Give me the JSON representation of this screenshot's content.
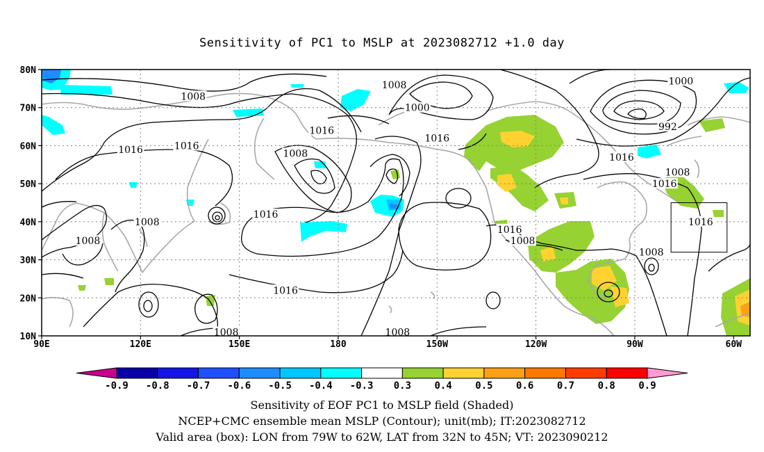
{
  "title": "Sensitivity of PC1 to MSLP at 2023082712 +1.0 day",
  "map": {
    "lon_labels": [
      "90E",
      "120E",
      "150E",
      "180",
      "150W",
      "120W",
      "90W",
      "60W"
    ],
    "lat_labels": [
      "80N",
      "70N",
      "60N",
      "50N",
      "40N",
      "30N",
      "20N",
      "10N"
    ],
    "lon_range": [
      90,
      305
    ],
    "lat_range": [
      10,
      80
    ],
    "grid": "dotted",
    "contour_labels": [
      {
        "text": "1008",
        "lon": 136,
        "lat": 73
      },
      {
        "text": "1008",
        "lon": 122,
        "lat": 40
      },
      {
        "text": "1008",
        "lon": 104,
        "lat": 35
      },
      {
        "text": "1008",
        "lon": 167,
        "lat": 58
      },
      {
        "text": "1008",
        "lon": 197,
        "lat": 76
      },
      {
        "text": "1008",
        "lon": 283,
        "lat": 53
      },
      {
        "text": "1008",
        "lon": 236,
        "lat": 35
      },
      {
        "text": "1008",
        "lon": 275,
        "lat": 32
      },
      {
        "text": "1008",
        "lon": 146,
        "lat": 11
      },
      {
        "text": "1008",
        "lon": 198,
        "lat": 11
      },
      {
        "text": "1016",
        "lon": 117,
        "lat": 59
      },
      {
        "text": "1016",
        "lon": 134,
        "lat": 60
      },
      {
        "text": "1016",
        "lon": 175,
        "lat": 64
      },
      {
        "text": "1016",
        "lon": 158,
        "lat": 42
      },
      {
        "text": "1016",
        "lon": 164,
        "lat": 22
      },
      {
        "text": "1016",
        "lon": 210,
        "lat": 62
      },
      {
        "text": "1016",
        "lon": 266,
        "lat": 57
      },
      {
        "text": "1016",
        "lon": 279,
        "lat": 50
      },
      {
        "text": "1016",
        "lon": 290,
        "lat": 40
      },
      {
        "text": "1016",
        "lon": 232,
        "lat": 38
      },
      {
        "text": "1000",
        "lon": 204,
        "lat": 70
      },
      {
        "text": "1000",
        "lon": 284,
        "lat": 77
      },
      {
        "text": "992",
        "lon": 280,
        "lat": 65
      }
    ],
    "valid_box": {
      "lon": [
        281,
        298
      ],
      "lat": [
        32,
        45
      ]
    }
  },
  "colorbar": {
    "labels": [
      "-0.9",
      "-0.8",
      "-0.7",
      "-0.6",
      "-0.5",
      "-0.4",
      "-0.3",
      "0.3",
      "0.4",
      "0.5",
      "0.6",
      "0.7",
      "0.8",
      "0.9"
    ],
    "colors": [
      "#0a00a8",
      "#1414e6",
      "#1e50ff",
      "#1e8cff",
      "#00c8ff",
      "#00ffff",
      "#ffffff",
      "#96d232",
      "#ffd232",
      "#ffa014",
      "#ff7800",
      "#ff3c00",
      "#ff0000"
    ],
    "low_end_color": "#c8008c",
    "high_end_color": "#ff9bd2"
  },
  "captions": [
    "Sensitivity of EOF PC1 to MSLP field (Shaded)",
    "NCEP+CMC ensemble mean MSLP (Contour); unit(mb); IT:2023082712",
    "Valid area (box): LON from 79W to 62W, LAT from 32N to 45N; VT: 2023090212"
  ]
}
